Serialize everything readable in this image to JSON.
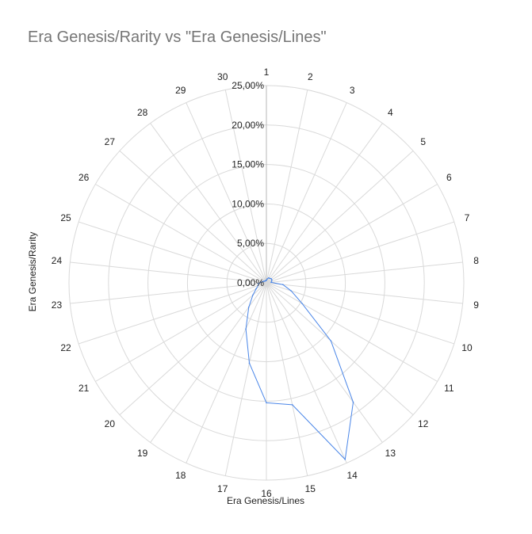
{
  "chart_data": {
    "type": "radar",
    "title": "Era Genesis/Rarity vs \"Era Genesis/Lines\"",
    "xlabel": "Era Genesis/Lines",
    "ylabel": "Era Genesis/Rarity",
    "categories": [
      "1",
      "2",
      "3",
      "4",
      "5",
      "6",
      "7",
      "8",
      "9",
      "10",
      "11",
      "12",
      "13",
      "14",
      "15",
      "16",
      "17",
      "18",
      "19",
      "20",
      "21",
      "22",
      "23",
      "24",
      "25",
      "26",
      "27",
      "28",
      "29",
      "30"
    ],
    "radial_ticks": [
      "0,00%",
      "5,00%",
      "10,00%",
      "15,00%",
      "20,00%",
      "25,00%"
    ],
    "rlim": [
      0,
      25
    ],
    "grid": true,
    "legend": "none",
    "series": [
      {
        "color": "#4a86e8",
        "values": [
          0.3,
          0.5,
          0.7,
          0.7,
          0.8,
          0.8,
          0.7,
          0.6,
          2.1,
          3.3,
          5.2,
          11.0,
          18.7,
          24.5,
          15.8,
          15.2,
          10.4,
          6.4,
          3.8,
          2.3,
          1.5,
          1.1,
          1.0,
          0.7,
          0.5,
          0.4,
          0.3,
          0.3,
          0.3,
          0.3
        ]
      }
    ]
  }
}
